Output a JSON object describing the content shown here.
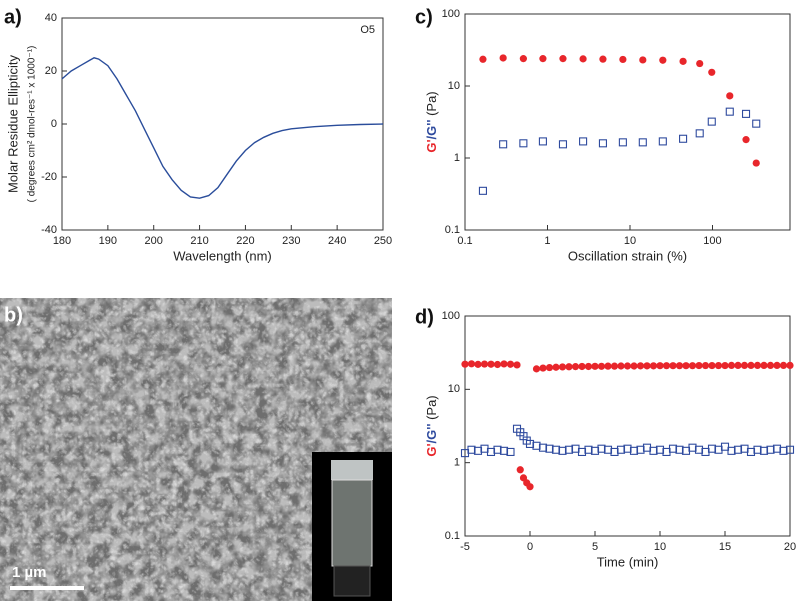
{
  "chart_data": [
    {
      "type": "line",
      "label": "a)",
      "annotation": "O5",
      "xlabel": "Wavelength (nm)",
      "ylabel": [
        "Molar Residue Ellipticity",
        "( degrees cm² dmol-res⁻¹ x 1000⁻¹)"
      ],
      "x": [
        180,
        182,
        184,
        186,
        187,
        188,
        190,
        192,
        194,
        196,
        198,
        200,
        202,
        204,
        206,
        208,
        210,
        212,
        214,
        216,
        218,
        220,
        222,
        224,
        226,
        228,
        230,
        235,
        240,
        245,
        250
      ],
      "series": [
        {
          "color": "#2a4d9b",
          "values": [
            17,
            20,
            22,
            24,
            25,
            24.5,
            22,
            17,
            11,
            5,
            -2,
            -9,
            -16,
            -21,
            -25,
            -27.5,
            -28,
            -27,
            -24,
            -19,
            -14,
            -10,
            -7,
            -5,
            -3.5,
            -2.5,
            -1.8,
            -1,
            -0.5,
            -0.2,
            0
          ]
        }
      ],
      "xlim": [
        180,
        250
      ],
      "xticks": [
        180,
        190,
        200,
        210,
        220,
        230,
        240,
        250
      ],
      "ylim": [
        -40,
        40
      ],
      "yticks": [
        -40,
        -20,
        0,
        20,
        40
      ]
    },
    {
      "type": "scatter",
      "label": "c)",
      "xlog": true,
      "ylog": true,
      "xlabel": "Oscillation strain (%)",
      "ylabel": [
        {
          "text": "G'",
          "color": "#e8262b"
        },
        {
          "text": "/G''",
          "color": "#2e4a9e"
        },
        {
          "text": " (Pa)",
          "color": "#222"
        }
      ],
      "x": [
        0.165,
        0.29,
        0.51,
        0.88,
        1.54,
        2.7,
        4.7,
        8.2,
        14.3,
        25,
        44,
        70,
        98,
        162,
        255,
        339
      ],
      "series": [
        {
          "color": "#e8262b",
          "marker": "circle",
          "values": [
            23.5,
            24.5,
            24,
            24,
            24,
            23.8,
            23.6,
            23.4,
            23,
            22.8,
            22,
            20.5,
            15.5,
            7.3,
            1.8,
            0.85
          ]
        },
        {
          "color": "#2e4a9e",
          "marker": "square-open",
          "values": [
            0.35,
            1.55,
            1.6,
            1.7,
            1.55,
            1.7,
            1.6,
            1.65,
            1.65,
            1.7,
            1.85,
            2.2,
            3.2,
            4.4,
            4.1,
            3.0
          ]
        }
      ],
      "xlim": [
        0.1,
        870
      ],
      "xticks": [
        0.1,
        1,
        10,
        100
      ],
      "ylim": [
        0.1,
        100
      ],
      "yticks": [
        0.1,
        1,
        10,
        100
      ]
    },
    {
      "type": "scatter",
      "label": "d)",
      "ylog": true,
      "xlabel": "Time (min)",
      "ylabel": [
        {
          "text": "G'",
          "color": "#e8262b"
        },
        {
          "text": "/G''",
          "color": "#2e4a9e"
        },
        {
          "text": " (Pa)",
          "color": "#222"
        }
      ],
      "x": [
        -5,
        -4.5,
        -4,
        -3.5,
        -3,
        -2.5,
        -2,
        -1.5,
        -1,
        -0.75,
        -0.5,
        -0.25,
        0,
        0.5,
        1,
        1.5,
        2,
        2.5,
        3,
        3.5,
        4,
        4.5,
        5,
        5.5,
        6,
        6.5,
        7,
        7.5,
        8,
        8.5,
        9,
        9.5,
        10,
        10.5,
        11,
        11.5,
        12,
        12.5,
        13,
        13.5,
        14,
        14.5,
        15,
        15.5,
        16,
        16.5,
        17,
        17.5,
        18,
        18.5,
        19,
        19.5,
        20
      ],
      "series": [
        {
          "color": "#e8262b",
          "marker": "circle",
          "values": [
            22,
            22.3,
            21.9,
            22.1,
            22,
            21.8,
            22.2,
            22,
            21.5,
            0.8,
            0.62,
            0.53,
            0.47,
            19,
            19.5,
            19.8,
            20,
            20.2,
            20.3,
            20.4,
            20.5,
            20.5,
            20.6,
            20.6,
            20.7,
            20.7,
            20.8,
            20.8,
            20.8,
            20.9,
            20.9,
            20.9,
            21,
            21,
            21,
            21,
            21,
            21,
            21.1,
            21.1,
            21.1,
            21.1,
            21.1,
            21.2,
            21.2,
            21.2,
            21.2,
            21.2,
            21.2,
            21.2,
            21.2,
            21.2,
            21.2
          ]
        },
        {
          "color": "#2e4a9e",
          "marker": "square-open",
          "values": [
            1.35,
            1.5,
            1.45,
            1.55,
            1.4,
            1.5,
            1.45,
            1.4,
            2.9,
            2.6,
            2.3,
            2.0,
            1.8,
            1.7,
            1.6,
            1.55,
            1.5,
            1.45,
            1.5,
            1.55,
            1.4,
            1.5,
            1.45,
            1.55,
            1.5,
            1.4,
            1.5,
            1.55,
            1.45,
            1.5,
            1.6,
            1.45,
            1.5,
            1.4,
            1.55,
            1.5,
            1.45,
            1.6,
            1.5,
            1.4,
            1.55,
            1.5,
            1.65,
            1.45,
            1.5,
            1.55,
            1.4,
            1.5,
            1.45,
            1.5,
            1.55,
            1.45,
            1.5
          ]
        }
      ],
      "xlim": [
        -5,
        20
      ],
      "xticks": [
        -5,
        0,
        5,
        10,
        15,
        20
      ],
      "ylim": [
        0.1,
        100
      ],
      "yticks": [
        0.1,
        1,
        10,
        100
      ]
    }
  ],
  "image": {
    "label": "b)",
    "scale_bar": "1 µm"
  }
}
